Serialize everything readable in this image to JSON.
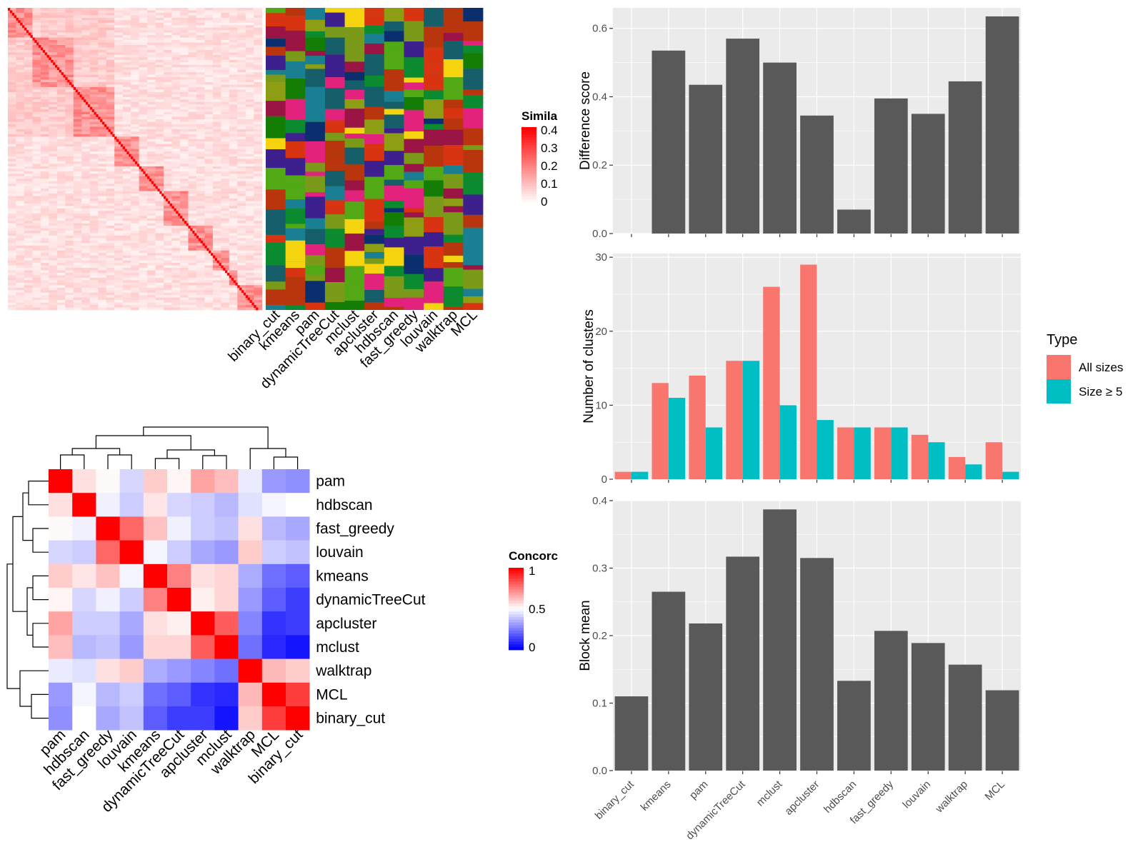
{
  "methods_order": [
    "binary_cut",
    "kmeans",
    "pam",
    "dynamicTreeCut",
    "mclust",
    "apcluster",
    "hdbscan",
    "fast_greedy",
    "louvain",
    "walktrap",
    "MCL"
  ],
  "colors": {
    "bar": "#595959",
    "panel_bg": "#EBEBEB",
    "grid": "#FFFFFF",
    "all_sizes": "#F8766D",
    "size5": "#00BFC4",
    "sim_low": "#FFFFFF",
    "sim_high": "#FF0000",
    "conc_low": "#0000FF",
    "conc_mid": "#FFFFFF",
    "conc_high": "#FF0000"
  },
  "similarity_legend": {
    "title": "Simila",
    "ticks": [
      "0.4",
      "0.3",
      "0.2",
      "0.1",
      "0"
    ]
  },
  "concordance_legend": {
    "title": "Concorc",
    "ticks": [
      "1",
      "0.5",
      "0"
    ]
  },
  "cluster_panel_labels": [
    "binary_cut",
    "kmeans",
    "pam",
    "dynamicTreeCut",
    "mclust",
    "apcluster",
    "hdbscan",
    "fast_greedy",
    "louvain",
    "walktrap",
    "MCL"
  ],
  "chart_data": [
    {
      "type": "heatmap",
      "id": "similarity-matrix",
      "description_values": "similarity matrix, diagonal blocks",
      "block_sizes": [
        12,
        20,
        20,
        12,
        10,
        14,
        10,
        8,
        6,
        10
      ],
      "scale": [
        0,
        0.4
      ]
    },
    {
      "type": "heatmap",
      "id": "concordance-matrix",
      "rows": [
        "pam",
        "hdbscan",
        "fast_greedy",
        "louvain",
        "kmeans",
        "dynamicTreeCut",
        "apcluster",
        "mclust",
        "walktrap",
        "MCL",
        "binary_cut"
      ],
      "cols": [
        "pam",
        "hdbscan",
        "fast_greedy",
        "louvain",
        "kmeans",
        "dynamicTreeCut",
        "apcluster",
        "mclust",
        "walktrap",
        "MCL",
        "binary_cut"
      ],
      "values": [
        [
          1.0,
          0.56,
          0.51,
          0.42,
          0.6,
          0.52,
          0.68,
          0.63,
          0.46,
          0.3,
          0.28
        ],
        [
          0.56,
          1.0,
          0.47,
          0.4,
          0.55,
          0.42,
          0.4,
          0.36,
          0.44,
          0.48,
          0.5
        ],
        [
          0.51,
          0.47,
          1.0,
          0.8,
          0.62,
          0.47,
          0.4,
          0.38,
          0.56,
          0.36,
          0.33
        ],
        [
          0.42,
          0.4,
          0.8,
          1.0,
          0.48,
          0.4,
          0.33,
          0.3,
          0.6,
          0.4,
          0.38
        ],
        [
          0.6,
          0.55,
          0.62,
          0.48,
          1.0,
          0.75,
          0.56,
          0.58,
          0.34,
          0.22,
          0.18
        ],
        [
          0.52,
          0.42,
          0.47,
          0.4,
          0.75,
          1.0,
          0.53,
          0.58,
          0.3,
          0.18,
          0.12
        ],
        [
          0.68,
          0.4,
          0.4,
          0.33,
          0.56,
          0.53,
          1.0,
          0.82,
          0.26,
          0.1,
          0.12
        ],
        [
          0.63,
          0.36,
          0.38,
          0.3,
          0.58,
          0.58,
          0.82,
          1.0,
          0.22,
          0.08,
          0.04
        ],
        [
          0.46,
          0.44,
          0.56,
          0.6,
          0.34,
          0.3,
          0.26,
          0.22,
          1.0,
          0.64,
          0.6
        ],
        [
          0.3,
          0.48,
          0.36,
          0.4,
          0.22,
          0.18,
          0.1,
          0.08,
          0.64,
          1.0,
          0.88
        ],
        [
          0.28,
          0.5,
          0.33,
          0.38,
          0.18,
          0.12,
          0.12,
          0.04,
          0.6,
          0.88,
          1.0
        ]
      ],
      "scale": [
        0,
        1
      ]
    },
    {
      "type": "bar",
      "id": "difference-score",
      "categories": [
        "binary_cut",
        "kmeans",
        "pam",
        "dynamicTreeCut",
        "mclust",
        "apcluster",
        "hdbscan",
        "fast_greedy",
        "louvain",
        "walktrap",
        "MCL"
      ],
      "values": [
        0.0,
        0.535,
        0.435,
        0.57,
        0.5,
        0.345,
        0.07,
        0.395,
        0.35,
        0.445,
        0.635
      ],
      "ylabel": "Difference score",
      "ylim": [
        0,
        0.66
      ],
      "yticks": [
        0.0,
        0.2,
        0.4,
        0.6
      ],
      "ytick_labels": [
        "0.0",
        "0.2",
        "0.4",
        "0.6"
      ],
      "grid": true
    },
    {
      "type": "bar",
      "id": "number-of-clusters",
      "categories": [
        "binary_cut",
        "kmeans",
        "pam",
        "dynamicTreeCut",
        "mclust",
        "apcluster",
        "hdbscan",
        "fast_greedy",
        "louvain",
        "walktrap",
        "MCL"
      ],
      "series": [
        {
          "name": "All sizes",
          "values": [
            1,
            13,
            14,
            16,
            26,
            29,
            7,
            7,
            6,
            3,
            5
          ]
        },
        {
          "name": "Size ≥ 5",
          "values": [
            1,
            11,
            7,
            16,
            10,
            8,
            7,
            7,
            5,
            2,
            1
          ]
        }
      ],
      "ylabel": "Number of clusters",
      "ylim": [
        0,
        30.5
      ],
      "yticks": [
        0,
        10,
        20,
        30
      ],
      "ytick_labels": [
        "0",
        "10",
        "20",
        "30"
      ],
      "legend_title": "Type",
      "legend_position": "right",
      "grid": true
    },
    {
      "type": "bar",
      "id": "block-mean",
      "categories": [
        "binary_cut",
        "kmeans",
        "pam",
        "dynamicTreeCut",
        "mclust",
        "apcluster",
        "hdbscan",
        "fast_greedy",
        "louvain",
        "walktrap",
        "MCL"
      ],
      "values": [
        0.11,
        0.265,
        0.218,
        0.317,
        0.387,
        0.315,
        0.133,
        0.207,
        0.189,
        0.157,
        0.119
      ],
      "ylabel": "Block mean",
      "ylim": [
        0,
        0.4
      ],
      "yticks": [
        0.0,
        0.1,
        0.2,
        0.3,
        0.4
      ],
      "ytick_labels": [
        "0.0",
        "0.1",
        "0.2",
        "0.3",
        "0.4"
      ],
      "grid": true
    }
  ]
}
